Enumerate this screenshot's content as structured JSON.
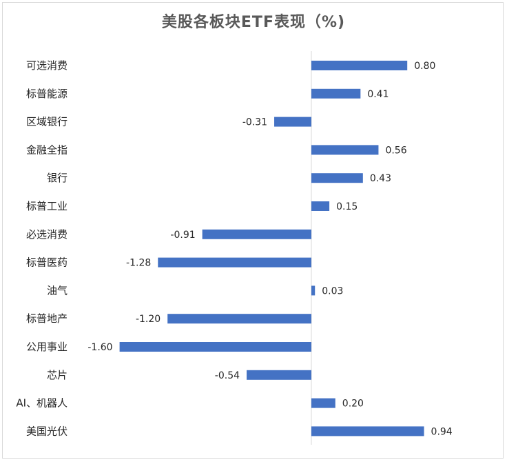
{
  "chart_data": {
    "type": "bar",
    "orientation": "horizontal",
    "title": "美股各板块ETF表现（%)",
    "categories": [
      "可选消费",
      "标普能源",
      "区域银行",
      "金融全指",
      "银行",
      "标普工业",
      "必选消费",
      "标普医药",
      "油气",
      "标普地产",
      "公用事业",
      "芯片",
      "AI、机器人",
      "美国光伏"
    ],
    "values": [
      0.8,
      0.41,
      -0.31,
      0.56,
      0.43,
      0.15,
      -0.91,
      -1.28,
      0.03,
      -1.2,
      -1.6,
      -0.54,
      0.2,
      0.94
    ],
    "value_labels": [
      "0.80",
      "0.41",
      "-0.31",
      "0.56",
      "0.43",
      "0.15",
      "-0.91",
      "-1.28",
      "0.03",
      "-1.20",
      "-1.60",
      "-0.54",
      "0.20",
      "0.94"
    ],
    "xlim": [
      -1.6,
      0.94
    ],
    "grid": false,
    "bar_color": "#4472c4",
    "axis_color": "#d9d9d9"
  }
}
